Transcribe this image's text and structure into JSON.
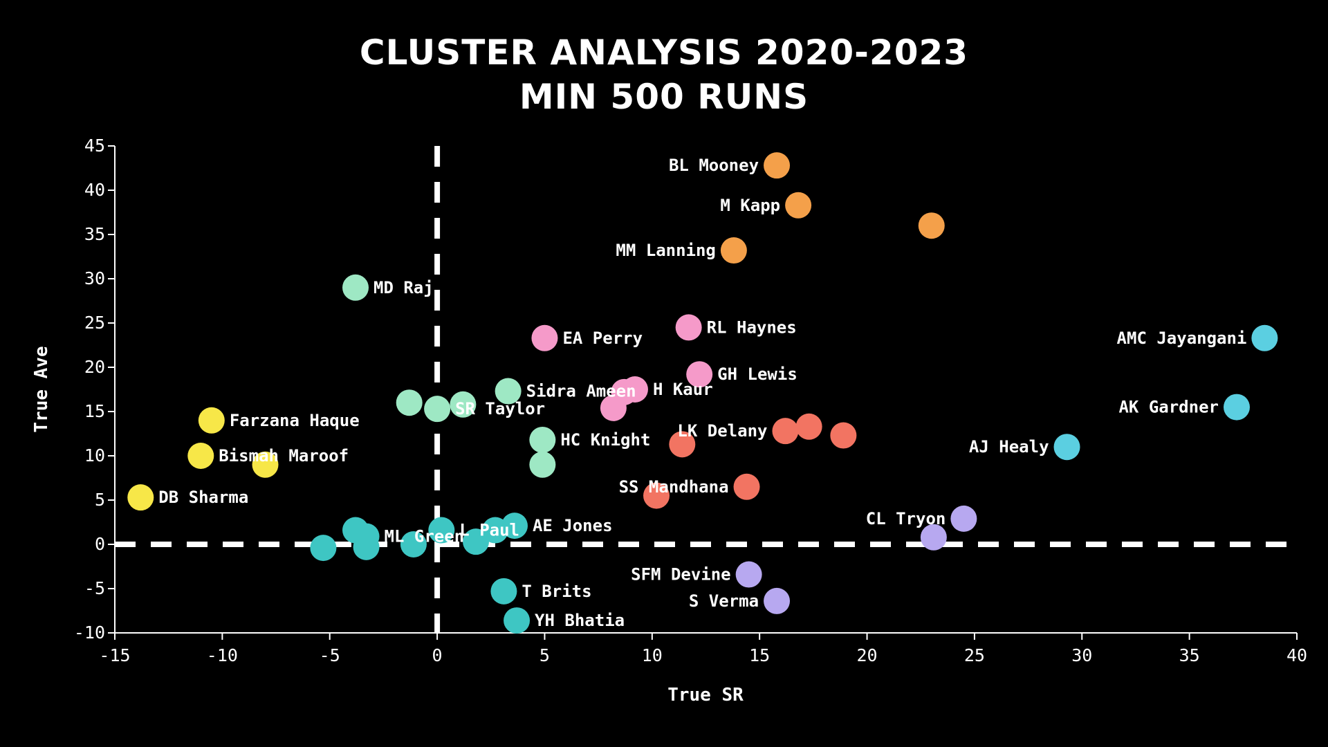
{
  "chart_data": {
    "type": "scatter",
    "title": [
      "CLUSTER ANALYSIS 2020-2023",
      "MIN 500 RUNS"
    ],
    "xlabel": "True SR",
    "ylabel": "True Ave",
    "xlim": [
      -15,
      40
    ],
    "ylim": [
      -10,
      45
    ],
    "xticks": [
      -15,
      -10,
      -5,
      0,
      5,
      10,
      15,
      20,
      25,
      30,
      35,
      40
    ],
    "yticks": [
      -10,
      -5,
      0,
      5,
      10,
      15,
      20,
      25,
      30,
      35,
      40,
      45
    ],
    "reference_lines": [
      {
        "axis": "x",
        "value": 0,
        "style": "dashed"
      },
      {
        "axis": "y",
        "value": 0,
        "style": "dashed"
      }
    ],
    "clusters": [
      {
        "name": "orange",
        "color": "#f4a04a",
        "points": [
          {
            "x": 15.8,
            "y": 42.8,
            "label": "BL Mooney",
            "label_side": "left"
          },
          {
            "x": 16.8,
            "y": 38.3,
            "label": "M Kapp",
            "label_side": "left"
          },
          {
            "x": 23.0,
            "y": 36.0,
            "label": ""
          },
          {
            "x": 13.8,
            "y": 33.2,
            "label": "MM Lanning",
            "label_side": "left"
          }
        ]
      },
      {
        "name": "pink",
        "color": "#f59ac9",
        "points": [
          {
            "x": 11.7,
            "y": 24.5,
            "label": "RL Haynes",
            "label_side": "right"
          },
          {
            "x": 5.0,
            "y": 23.3,
            "label": "EA Perry",
            "label_side": "right"
          },
          {
            "x": 12.2,
            "y": 19.2,
            "label": "GH Lewis",
            "label_side": "right"
          },
          {
            "x": 9.2,
            "y": 17.5,
            "label": "H Kaur",
            "label_side": "right"
          },
          {
            "x": 8.7,
            "y": 17.2,
            "label": ""
          },
          {
            "x": 8.2,
            "y": 15.4,
            "label": ""
          }
        ]
      },
      {
        "name": "red",
        "color": "#f27462",
        "points": [
          {
            "x": 16.2,
            "y": 12.8,
            "label": "LK Delany",
            "label_side": "left"
          },
          {
            "x": 17.3,
            "y": 13.3,
            "label": ""
          },
          {
            "x": 18.9,
            "y": 12.3,
            "label": ""
          },
          {
            "x": 11.4,
            "y": 11.3,
            "label": ""
          },
          {
            "x": 14.4,
            "y": 6.5,
            "label": "SS Mandhana",
            "label_side": "left"
          },
          {
            "x": 10.2,
            "y": 5.5,
            "label": ""
          }
        ]
      },
      {
        "name": "cyan",
        "color": "#5bcfe1",
        "points": [
          {
            "x": 38.5,
            "y": 23.3,
            "label": "AMC Jayangani",
            "label_side": "left"
          },
          {
            "x": 37.2,
            "y": 15.5,
            "label": "AK Gardner",
            "label_side": "left"
          },
          {
            "x": 29.3,
            "y": 11.0,
            "label": "AJ Healy",
            "label_side": "left"
          }
        ]
      },
      {
        "name": "lavender",
        "color": "#b7a8f0",
        "points": [
          {
            "x": 24.5,
            "y": 2.9,
            "label": "CL Tryon",
            "label_side": "left"
          },
          {
            "x": 23.1,
            "y": 0.8,
            "label": ""
          },
          {
            "x": 14.5,
            "y": -3.4,
            "label": "SFM Devine",
            "label_side": "left"
          },
          {
            "x": 15.8,
            "y": -6.4,
            "label": "S Verma",
            "label_side": "left"
          }
        ]
      },
      {
        "name": "mint",
        "color": "#9ee8c4",
        "points": [
          {
            "x": -3.8,
            "y": 29.0,
            "label": "MD Raj",
            "label_side": "right"
          },
          {
            "x": 3.3,
            "y": 17.3,
            "label": "Sidra Ameen",
            "label_side": "right"
          },
          {
            "x": -1.3,
            "y": 16.0,
            "label": ""
          },
          {
            "x": 0.0,
            "y": 15.3,
            "label": "SR Taylor",
            "label_side": "right"
          },
          {
            "x": 1.2,
            "y": 15.8,
            "label": ""
          },
          {
            "x": 4.9,
            "y": 11.8,
            "label": "HC Knight",
            "label_side": "right"
          },
          {
            "x": 4.9,
            "y": 9.0,
            "label": ""
          }
        ]
      },
      {
        "name": "yellow",
        "color": "#f7e748",
        "points": [
          {
            "x": -10.5,
            "y": 14.0,
            "label": "Farzana Haque",
            "label_side": "right"
          },
          {
            "x": -11.0,
            "y": 10.0,
            "label": "Bismah Maroof",
            "label_side": "right"
          },
          {
            "x": -8.0,
            "y": 9.0,
            "label": ""
          },
          {
            "x": -13.8,
            "y": 5.3,
            "label": "DB Sharma",
            "label_side": "right"
          }
        ]
      },
      {
        "name": "teal",
        "color": "#3ec6c3",
        "points": [
          {
            "x": -3.8,
            "y": 1.6,
            "label": ""
          },
          {
            "x": -3.3,
            "y": 0.9,
            "label": "ML Green",
            "label_side": "right"
          },
          {
            "x": 0.2,
            "y": 1.6,
            "label": "L Paul",
            "label_side": "right"
          },
          {
            "x": 2.7,
            "y": 1.6,
            "label": ""
          },
          {
            "x": 3.6,
            "y": 2.1,
            "label": "AE Jones",
            "label_side": "right"
          },
          {
            "x": -5.3,
            "y": -0.4,
            "label": ""
          },
          {
            "x": -3.3,
            "y": -0.3,
            "label": ""
          },
          {
            "x": -1.1,
            "y": 0.0,
            "label": ""
          },
          {
            "x": 1.8,
            "y": 0.3,
            "label": ""
          },
          {
            "x": 3.1,
            "y": -5.3,
            "label": "T Brits",
            "label_side": "right"
          },
          {
            "x": 3.7,
            "y": -8.6,
            "label": "YH Bhatia",
            "label_side": "right"
          }
        ]
      }
    ]
  }
}
